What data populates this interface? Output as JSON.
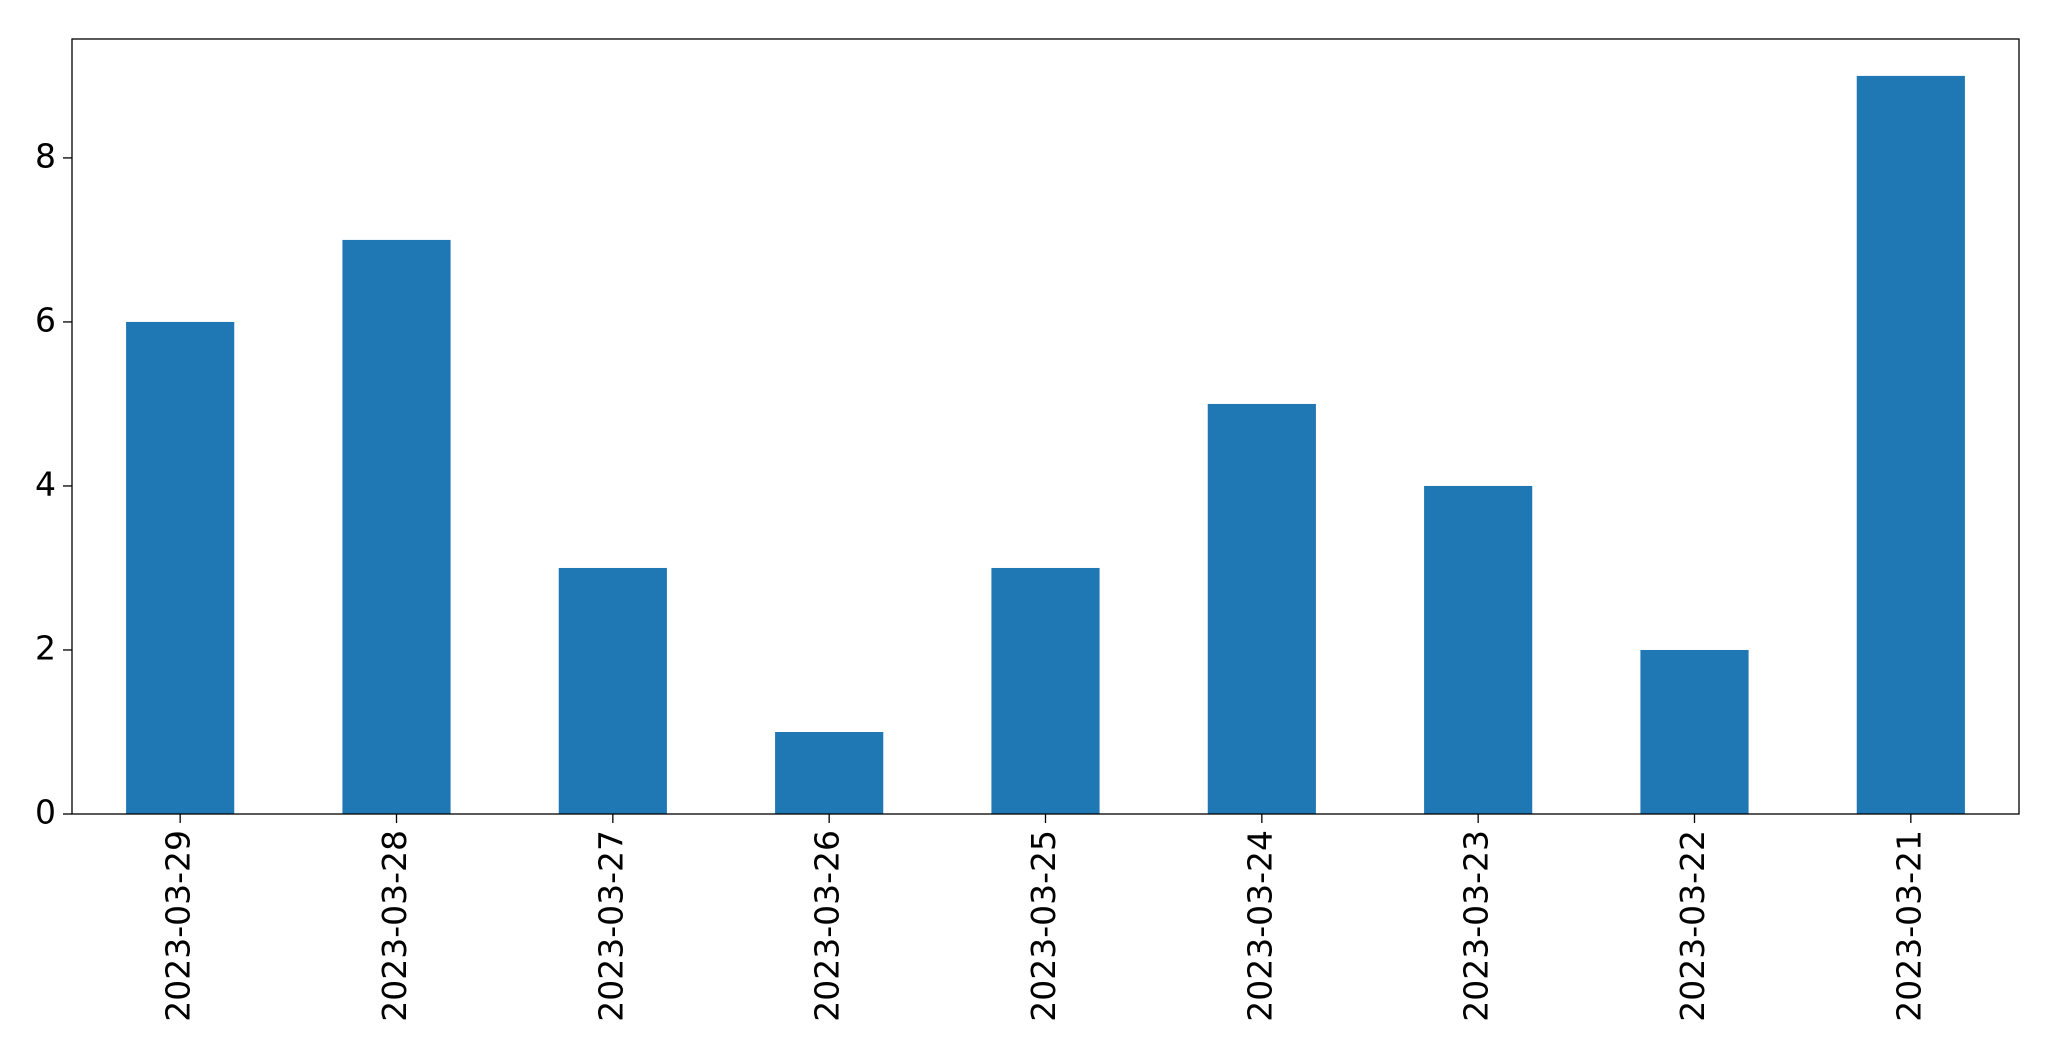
{
  "chart_data": {
    "type": "bar",
    "categories": [
      "2023-03-29",
      "2023-03-28",
      "2023-03-27",
      "2023-03-26",
      "2023-03-25",
      "2023-03-24",
      "2023-03-23",
      "2023-03-22",
      "2023-03-21"
    ],
    "values": [
      6,
      7,
      3,
      1,
      3,
      5,
      4,
      2,
      9
    ],
    "color": "#1f77b4",
    "ylim": [
      0,
      9.45
    ],
    "yticks": [
      0,
      2,
      4,
      6,
      8
    ],
    "grid": false
  }
}
